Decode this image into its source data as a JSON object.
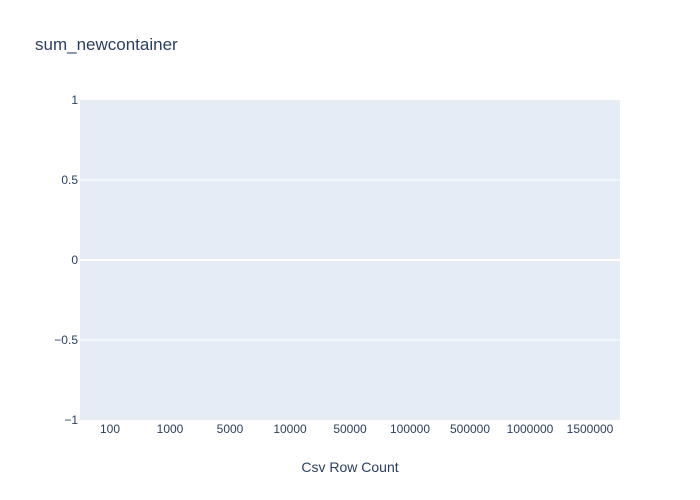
{
  "chart_data": {
    "type": "bar",
    "title": "sum_newcontainer",
    "xlabel": "Csv Row Count",
    "ylabel": "",
    "categories": [
      "100",
      "1000",
      "5000",
      "10000",
      "50000",
      "100000",
      "500000",
      "1000000",
      "1500000"
    ],
    "series": [
      {
        "name": "sum_newcontainer",
        "values": [
          0,
          0,
          0,
          0,
          0,
          0,
          0,
          0,
          0
        ]
      }
    ],
    "ylim": [
      -1,
      1
    ],
    "yticks": [
      1,
      0.5,
      0,
      -0.5,
      -1
    ],
    "ytick_labels": [
      "1",
      "0.5",
      "0",
      "−0.5",
      "−1"
    ],
    "grid": true,
    "legend": "none",
    "colors": {
      "plot_background": "#E5ECF6",
      "grid": "#ffffff",
      "text": "#2a3f5f",
      "bar": "#636efa"
    }
  }
}
